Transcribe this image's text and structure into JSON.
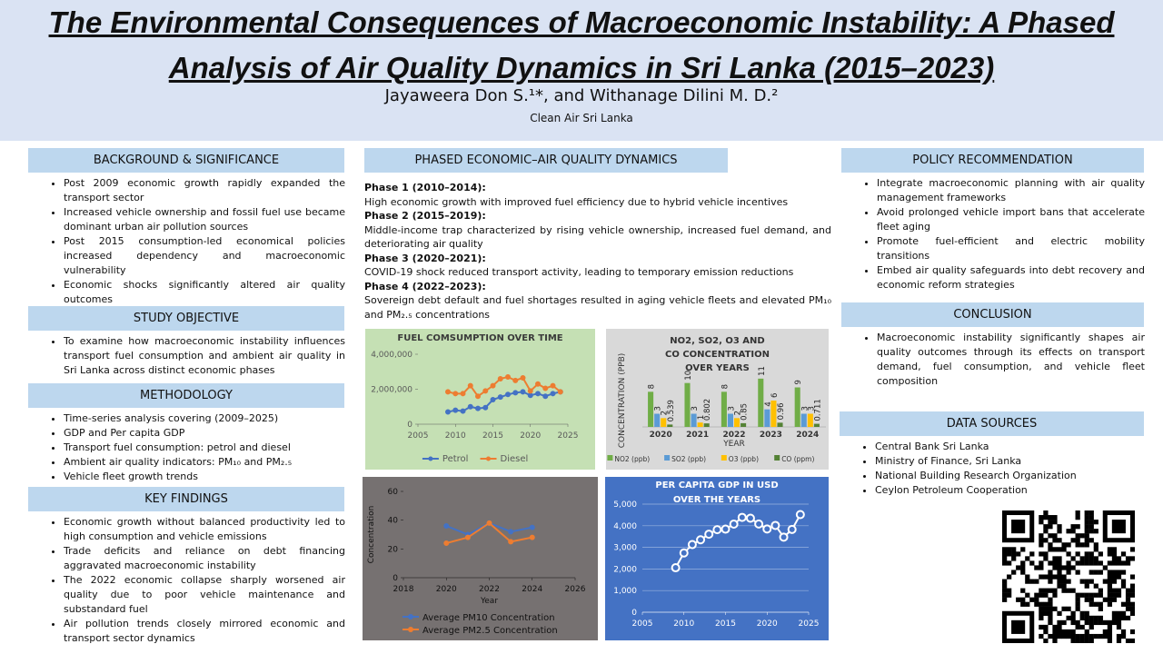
{
  "header": {
    "title": "The Environmental Consequences of Macroeconomic Instability: A Phased Analysis of Air Quality Dynamics in Sri Lanka (2015–2023)",
    "authors": "Jayaweera Don S.¹*, and Withanage Dilini M. D.²",
    "affiliation": "Clean Air Sri Lanka"
  },
  "left": [
    {
      "heading": "BACKGROUND & SIGNIFICANCE",
      "items": [
        "Post 2009 economic growth rapidly expanded the transport sector",
        "Increased vehicle ownership and fossil fuel use became dominant urban air pollution sources",
        "Post 2015 consumption-led economical policies increased dependency and macroeconomic vulnerability",
        "Economic shocks significantly altered air quality outcomes"
      ]
    },
    {
      "heading": "STUDY OBJECTIVE",
      "items": [
        "To examine how macroeconomic instability influences transport fuel consumption and ambient air quality in Sri Lanka across distinct economic phases"
      ]
    },
    {
      "heading": "METHODOLOGY",
      "items": [
        "Time-series analysis covering (2009–2025)",
        "GDP and Per capita GDP",
        "Transport fuel consumption: petrol and diesel",
        "Ambient air quality indicators: PM₁₀ and PM₂.₅",
        "Vehicle fleet growth trends"
      ]
    },
    {
      "heading": "KEY FINDINGS",
      "items": [
        "Economic growth without balanced productivity led to high consumption and vehicle emissions",
        "Trade deficits and reliance on debt financing aggravated macroeconomic instability",
        "The 2022 economic collapse sharply worsened air quality due to poor vehicle maintenance and substandard fuel",
        "Air pollution trends closely mirrored economic and transport sector dynamics"
      ]
    }
  ],
  "middle": {
    "heading": "PHASED ECONOMIC–AIR QUALITY DYNAMICS",
    "phases": [
      {
        "label": "Phase 1 (2010–2014):",
        "text": "High economic growth with improved fuel efficiency due to hybrid vehicle incentives"
      },
      {
        "label": "Phase 2 (2015–2019):",
        "text": "Middle-income trap characterized by rising vehicle ownership, increased fuel demand, and deteriorating air quality"
      },
      {
        "label": "Phase 3 (2020–2021):",
        "text": "COVID-19 shock reduced transport activity, leading to temporary emission reductions"
      },
      {
        "label": "Phase 4 (2022–2023):",
        "text": "Sovereign debt default and fuel shortages resulted in aging vehicle fleets and elevated PM₁₀ and PM₂.₅ concentrations"
      }
    ]
  },
  "right": [
    {
      "heading": "POLICY RECOMMENDATION",
      "items": [
        "Integrate macroeconomic planning with air quality management frameworks",
        "Avoid prolonged vehicle import bans that accelerate fleet aging",
        "Promote fuel-efficient and electric mobility transitions",
        "Embed air quality safeguards into debt recovery and economic reform strategies"
      ]
    },
    {
      "heading": "CONCLUSION",
      "items": [
        "Macroeconomic instability significantly shapes air quality outcomes through its effects on transport demand, fuel consumption, and vehicle fleet composition"
      ]
    },
    {
      "heading": "DATA SOURCES",
      "items": [
        "Central Bank Sri Lanka",
        "Ministry of Finance, Sri Lanka",
        "National Building Research Organization",
        "Ceylon Petroleum Cooperation"
      ]
    }
  ],
  "chart_data": [
    {
      "type": "line",
      "title": "FUEL COMSUMPTION OVER TIME",
      "background": "#c5e0b4",
      "marker": "circle",
      "grid": false,
      "legend": "bottom",
      "x": [
        2009,
        2010,
        2011,
        2012,
        2013,
        2014,
        2015,
        2016,
        2017,
        2018,
        2019,
        2020,
        2021,
        2022,
        2023,
        2024
      ],
      "series": [
        {
          "name": "Petrol",
          "color": "#4472c4",
          "values": [
            700000,
            800000,
            750000,
            1000000,
            900000,
            950000,
            1400000,
            1550000,
            1700000,
            1800000,
            1850000,
            1650000,
            1750000,
            1600000,
            1750000,
            1850000
          ]
        },
        {
          "name": "Diesel",
          "color": "#ed7d31",
          "values": [
            1850000,
            1750000,
            1750000,
            2200000,
            1600000,
            1900000,
            2200000,
            2600000,
            2700000,
            2500000,
            2650000,
            1900000,
            2300000,
            2050000,
            2200000,
            1850000
          ]
        }
      ],
      "xlim": [
        2005,
        2025
      ],
      "xticks": [
        2005,
        2010,
        2015,
        2020,
        2025
      ],
      "ylim": [
        0,
        4000000
      ],
      "yticks": [
        0,
        {
          "value": 2000000,
          "label": "2,000,000"
        },
        {
          "value": 4000000,
          "label": "4,000,000"
        }
      ]
    },
    {
      "type": "bar",
      "title": "NO2, SO2, O3 AND CO CONCENTRATION OVER YEARS",
      "background": "#d9d9d9",
      "x_label": "YEAR",
      "y_label": "CONCENTRATION (PPB)",
      "legend": "bottom",
      "categories": [
        "2020",
        "2021",
        "2022",
        "2023",
        "2024"
      ],
      "series": [
        {
          "name": "NO2 (ppb)",
          "color": "#70ad47",
          "values": [
            8,
            10,
            8,
            11,
            9
          ]
        },
        {
          "name": "SO2 (ppb)",
          "color": "#5b9bd5",
          "values": [
            3,
            3,
            3,
            4,
            3
          ]
        },
        {
          "name": "O3 (ppb)",
          "color": "#ffc000",
          "values": [
            2,
            1,
            2,
            6,
            3
          ]
        },
        {
          "name": "CO (ppm)",
          "color": "#548235",
          "values": [
            0.539,
            0.802,
            0.85,
            0.96,
            0.711
          ]
        }
      ],
      "ylim": [
        0,
        12
      ]
    },
    {
      "type": "line",
      "background": "#767171",
      "marker": "circle",
      "grid": false,
      "legend": "bottom-left",
      "x_label": "Year",
      "y_label": "Concentration",
      "x": [
        2020,
        2021,
        2022,
        2023,
        2024
      ],
      "series": [
        {
          "name": "Average PM10 Concentration",
          "color": "#4472c4",
          "values": [
            36,
            30,
            38,
            32,
            35
          ]
        },
        {
          "name": "Average PM2.5 Concentration",
          "color": "#ed7d31",
          "values": [
            24,
            28,
            38,
            25,
            28
          ]
        }
      ],
      "xlim": [
        2018,
        2026
      ],
      "xticks": [
        2018,
        2020,
        2022,
        2024,
        2026
      ],
      "ylim": [
        0,
        60
      ],
      "yticks": [
        0,
        20,
        40,
        60
      ]
    },
    {
      "type": "line",
      "title": "PER CAPITA GDP IN USD OVER THE YEARS",
      "background": "#4472c4",
      "marker": "hollow-circle",
      "grid": true,
      "color": "#ffffff",
      "x": [
        2009,
        2010,
        2011,
        2012,
        2013,
        2014,
        2015,
        2016,
        2017,
        2018,
        2019,
        2020,
        2021,
        2022,
        2023,
        2024
      ],
      "values": [
        2057,
        2744,
        3129,
        3351,
        3610,
        3819,
        3843,
        4077,
        4388,
        4348,
        4082,
        3852,
        4014,
        3474,
        3828,
        4516
      ],
      "xlim": [
        2005,
        2025
      ],
      "xticks": [
        2005,
        2010,
        2015,
        2020,
        2025
      ],
      "ylim": [
        0,
        5000
      ],
      "yticks": [
        0,
        {
          "value": 1000,
          "label": "1,000"
        },
        {
          "value": 2000,
          "label": "2,000"
        },
        {
          "value": 3000,
          "label": "3,000"
        },
        {
          "value": 4000,
          "label": "4,000"
        },
        {
          "value": 5000,
          "label": "5,000"
        }
      ]
    }
  ]
}
